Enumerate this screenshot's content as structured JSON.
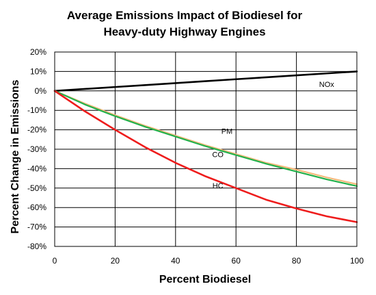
{
  "chart_data": {
    "type": "line",
    "title": "Average Emissions Impact of Biodiesel for Heavy-duty Highway Engines",
    "title_lines": [
      "Average Emissions Impact of Biodiesel for",
      "Heavy-duty Highway Engines"
    ],
    "xlabel": "Percent Biodiesel",
    "ylabel": "Percent Change in Emissions",
    "xlim": [
      0,
      100
    ],
    "ylim": [
      -80,
      20
    ],
    "x_ticks": [
      0,
      20,
      40,
      60,
      80,
      100
    ],
    "x_tick_labels": [
      "0",
      "20",
      "40",
      "60",
      "80",
      "100"
    ],
    "y_ticks": [
      20,
      10,
      0,
      -10,
      -20,
      -30,
      -40,
      -50,
      -60,
      -70,
      -80
    ],
    "y_tick_labels": [
      "20%",
      "10%",
      "0%",
      "-10%",
      "-20%",
      "-30%",
      "-40%",
      "-50%",
      "-60%",
      "-70%",
      "-80%"
    ],
    "grid": true,
    "x": [
      0,
      10,
      20,
      30,
      40,
      50,
      60,
      70,
      80,
      90,
      100
    ],
    "series": [
      {
        "name": "NOx",
        "color": "#000000",
        "values": [
          0,
          1,
          2,
          3,
          4,
          5,
          6,
          7,
          8,
          9,
          10
        ],
        "label_at": [
          90,
          2
        ]
      },
      {
        "name": "PM",
        "color": "#f5b97a",
        "values": [
          0,
          -6.5,
          -12.5,
          -18,
          -23,
          -28,
          -32.5,
          -37,
          -40.5,
          -44.5,
          -48
        ],
        "label_at": [
          57,
          -22
        ]
      },
      {
        "name": "CO",
        "color": "#22b14c",
        "values": [
          0,
          -7,
          -13,
          -18.5,
          -23.5,
          -28.5,
          -33,
          -37.5,
          -41.5,
          -45.5,
          -49
        ],
        "label_at": [
          54,
          -34
        ]
      },
      {
        "name": "HC",
        "color": "#ee1c1c",
        "values": [
          0,
          -10.5,
          -20,
          -29,
          -37,
          -44,
          -50,
          -56,
          -60.5,
          -64.5,
          -67.5
        ],
        "label_at": [
          54,
          -50
        ]
      }
    ]
  }
}
